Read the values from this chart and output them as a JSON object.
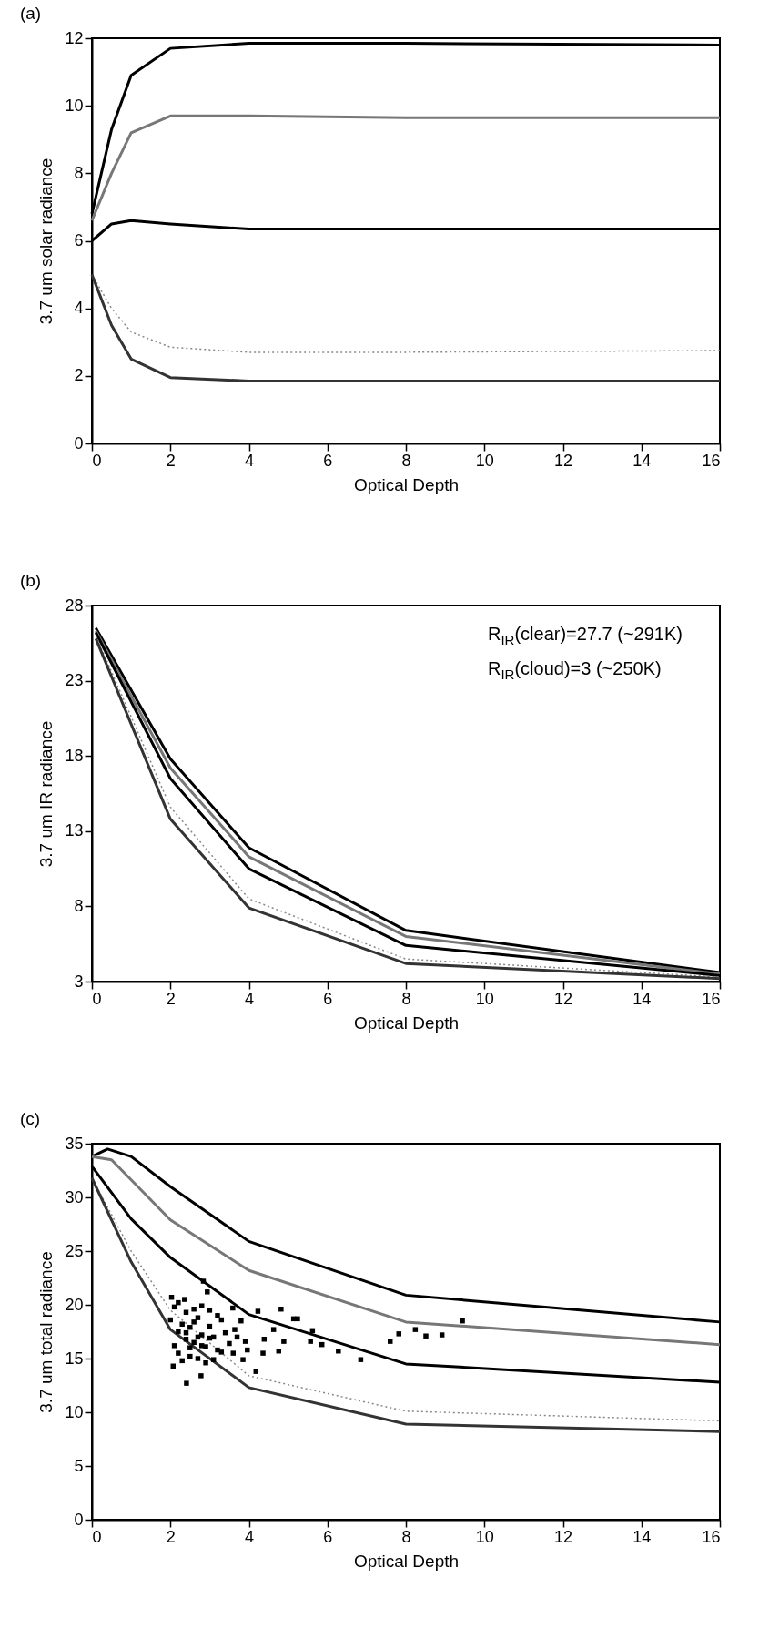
{
  "chart_data": [
    {
      "type": "line",
      "title": "(a)",
      "xlabel": "Optical Depth",
      "ylabel": "3.7 um solar radiance",
      "xlim": [
        0,
        16
      ],
      "ylim": [
        0,
        12
      ],
      "xticks": [
        0,
        2,
        4,
        6,
        8,
        10,
        12,
        14,
        16
      ],
      "yticks": [
        0,
        2,
        4,
        6,
        8,
        10,
        12
      ],
      "grid": false,
      "marker": "none",
      "series": [
        {
          "color": "#000000",
          "line_style": "solid",
          "x": [
            0,
            0.5,
            1,
            2,
            4,
            8,
            16
          ],
          "values": [
            6.8,
            9.3,
            10.9,
            11.7,
            11.85,
            11.85,
            11.8
          ]
        },
        {
          "color": "#777777",
          "line_style": "solid",
          "x": [
            0,
            0.5,
            1,
            2,
            4,
            8,
            16
          ],
          "values": [
            6.6,
            8.0,
            9.2,
            9.7,
            9.7,
            9.65,
            9.65
          ]
        },
        {
          "color": "#000000",
          "line_style": "solid",
          "x": [
            0,
            0.5,
            1,
            2,
            4,
            8,
            16
          ],
          "values": [
            6.0,
            6.5,
            6.6,
            6.5,
            6.35,
            6.35,
            6.35
          ]
        },
        {
          "color": "#888888",
          "line_style": "dotted",
          "x": [
            0,
            0.5,
            1,
            2,
            4,
            8,
            16
          ],
          "values": [
            5.0,
            4.0,
            3.3,
            2.85,
            2.7,
            2.7,
            2.75
          ]
        },
        {
          "color": "#333333",
          "line_style": "solid",
          "x": [
            0,
            0.5,
            1,
            2,
            4,
            8,
            16
          ],
          "values": [
            5.0,
            3.5,
            2.5,
            1.95,
            1.85,
            1.85,
            1.85
          ]
        }
      ]
    },
    {
      "type": "line",
      "title": "(b)",
      "xlabel": "Optical Depth",
      "ylabel": "3.7 um IR radiance",
      "xlim": [
        0,
        16
      ],
      "ylim": [
        3,
        28
      ],
      "xticks": [
        0,
        2,
        4,
        6,
        8,
        10,
        12,
        14,
        16
      ],
      "yticks": [
        3,
        8,
        13,
        18,
        23,
        28
      ],
      "grid": false,
      "marker": "none",
      "annotations": [
        "R$_{IR}$(clear)=27.7 (~291K)",
        "R$_{IR}$(cloud)=3 (~250K)"
      ],
      "series": [
        {
          "color": "#000000",
          "line_style": "solid",
          "x": [
            0.1,
            2,
            4,
            8,
            16
          ],
          "values": [
            26.5,
            17.8,
            11.9,
            6.4,
            3.6
          ]
        },
        {
          "color": "#777777",
          "line_style": "solid",
          "x": [
            0.1,
            2,
            4,
            8,
            16
          ],
          "values": [
            26.3,
            17.2,
            11.3,
            6.0,
            3.5
          ]
        },
        {
          "color": "#000000",
          "line_style": "solid",
          "x": [
            0.1,
            2,
            4,
            8,
            16
          ],
          "values": [
            26.2,
            16.5,
            10.5,
            5.4,
            3.4
          ]
        },
        {
          "color": "#888888",
          "line_style": "dotted",
          "x": [
            0.1,
            2,
            4,
            8,
            16
          ],
          "values": [
            26.0,
            14.6,
            8.5,
            4.5,
            3.3
          ]
        },
        {
          "color": "#333333",
          "line_style": "solid",
          "x": [
            0.1,
            2,
            4,
            8,
            16
          ],
          "values": [
            25.8,
            13.8,
            7.9,
            4.2,
            3.2
          ]
        }
      ]
    },
    {
      "type": "line",
      "title": "(c)",
      "xlabel": "Optical Depth",
      "ylabel": "3.7 um total radiance",
      "xlim": [
        0,
        16
      ],
      "ylim": [
        0,
        35
      ],
      "xticks": [
        0,
        2,
        4,
        6,
        8,
        10,
        12,
        14,
        16
      ],
      "yticks": [
        0,
        5,
        10,
        15,
        20,
        25,
        30,
        35
      ],
      "grid": false,
      "marker": "none",
      "series": [
        {
          "color": "#000000",
          "line_style": "solid",
          "x": [
            0,
            0.4,
            1,
            2,
            4,
            8,
            16
          ],
          "values": [
            33.8,
            34.5,
            33.8,
            31.0,
            25.9,
            20.9,
            18.4
          ]
        },
        {
          "color": "#777777",
          "line_style": "solid",
          "x": [
            0,
            0.5,
            2,
            4,
            8,
            16
          ],
          "values": [
            33.8,
            33.5,
            27.9,
            23.2,
            18.4,
            16.3
          ]
        },
        {
          "color": "#000000",
          "line_style": "solid",
          "x": [
            0,
            1,
            2,
            4,
            8,
            16
          ],
          "values": [
            32.9,
            28.0,
            24.4,
            19.1,
            14.5,
            12.8
          ]
        },
        {
          "color": "#888888",
          "line_style": "dotted",
          "x": [
            0,
            1,
            2,
            4,
            8,
            16
          ],
          "values": [
            31.8,
            25.0,
            19.5,
            13.4,
            10.1,
            9.2
          ]
        },
        {
          "color": "#333333",
          "line_style": "solid",
          "x": [
            0,
            1,
            2,
            4,
            8,
            16
          ],
          "values": [
            31.8,
            24.0,
            17.7,
            12.3,
            8.9,
            8.2
          ]
        },
        {
          "type": "scatter",
          "marker": "square",
          "color": "#000000",
          "x": [
            2.03,
            2.36,
            2.94,
            4.23,
            4.82,
            5.14,
            5.24,
            4.63,
            5.62,
            4.39,
            4.89,
            5.57,
            5.86,
            6.28,
            4.76,
            4.36,
            6.85,
            4.18,
            3.91,
            3.96,
            3.85,
            3.8,
            3.64,
            3.59,
            7.6,
            7.82,
            8.24,
            8.51,
            8.92,
            9.44,
            2.41,
            2.78,
            2.07,
            2.84,
            2.2,
            2.3,
            2.4,
            2.5,
            2.6,
            2.7,
            2.8,
            2.9,
            3.0,
            3.1,
            3.2,
            2.1,
            2.2,
            2.4,
            2.6,
            2.8,
            3.0,
            3.3,
            3.4,
            3.5,
            2.3,
            2.5,
            2.7,
            2.9,
            3.1,
            3.3,
            2.0,
            2.1,
            2.5,
            2.7,
            3.0,
            3.2,
            3.6,
            3.7,
            2.4,
            2.6,
            2.8,
            2.2
          ],
          "values": [
            20.7,
            20.5,
            21.2,
            19.4,
            19.6,
            18.7,
            18.7,
            17.7,
            17.6,
            16.8,
            16.6,
            16.6,
            16.3,
            15.7,
            15.7,
            15.5,
            14.9,
            13.8,
            16.6,
            15.8,
            14.9,
            18.5,
            17.7,
            19.7,
            16.6,
            17.3,
            17.7,
            17.1,
            17.2,
            18.5,
            12.7,
            13.4,
            14.3,
            22.2,
            17.5,
            18.2,
            16.8,
            17.9,
            16.5,
            18.8,
            17.2,
            16.1,
            18.0,
            17.0,
            15.8,
            16.2,
            15.5,
            19.3,
            19.6,
            19.9,
            19.5,
            18.6,
            17.4,
            16.4,
            14.8,
            15.2,
            15.0,
            14.6,
            14.9,
            15.6,
            18.6,
            19.8,
            16.0,
            17.0,
            16.9,
            19.0,
            15.5,
            17.0,
            17.4,
            18.4,
            16.2,
            20.2
          ]
        }
      ]
    }
  ]
}
